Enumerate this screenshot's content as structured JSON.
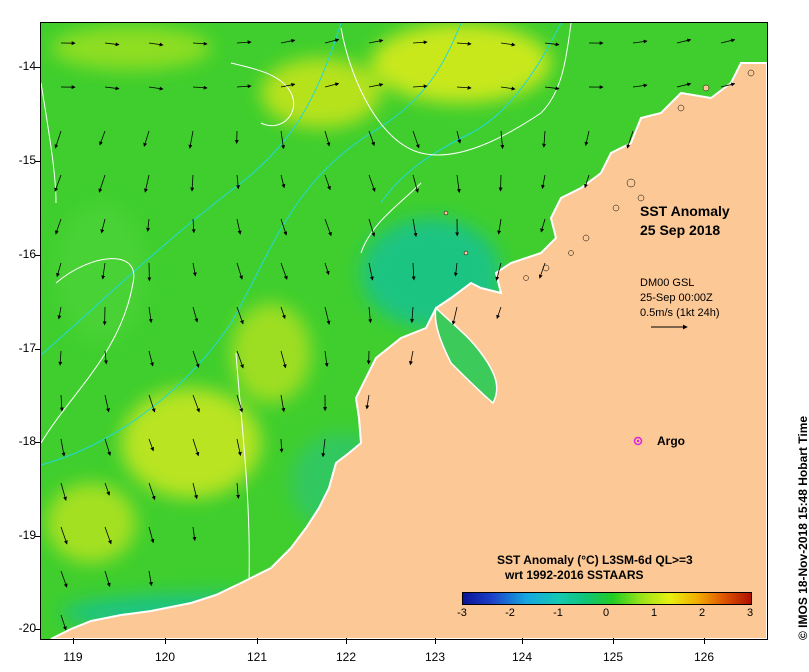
{
  "map": {
    "title_line1": "SST Anomaly",
    "title_line2": "25 Sep 2018",
    "y_ticks": [
      "-14",
      "-15",
      "-16",
      "-17",
      "-18",
      "-19",
      "-20"
    ],
    "x_ticks": [
      "119",
      "120",
      "121",
      "122",
      "123",
      "124",
      "125",
      "126"
    ],
    "vector_info": {
      "line1": "DM00 GSL",
      "line2": "25-Sep 00:00Z",
      "line3": "0.5m/s (1kt 24h)"
    },
    "argo_label": "Argo",
    "colorbar": {
      "title_line1": "SST Anomaly (°C) L3SM-6d QL>=3",
      "title_line2": "wrt 1992-2016 SSTAARS",
      "ticks": [
        "-3",
        "-2",
        "-1",
        "0",
        "1",
        "2",
        "3"
      ]
    },
    "credit": "© IMOS 18-Nov-2018 15:48 Hobart Time",
    "colors": {
      "land": "#fbc896",
      "ocean_main": "#3fce2e",
      "ocean_warm": "#c8e81e",
      "ocean_cool": "#1cc482",
      "contour": "#ffffff",
      "isobath": "#22d8d8",
      "argo_marker": "#e020e0"
    }
  }
}
